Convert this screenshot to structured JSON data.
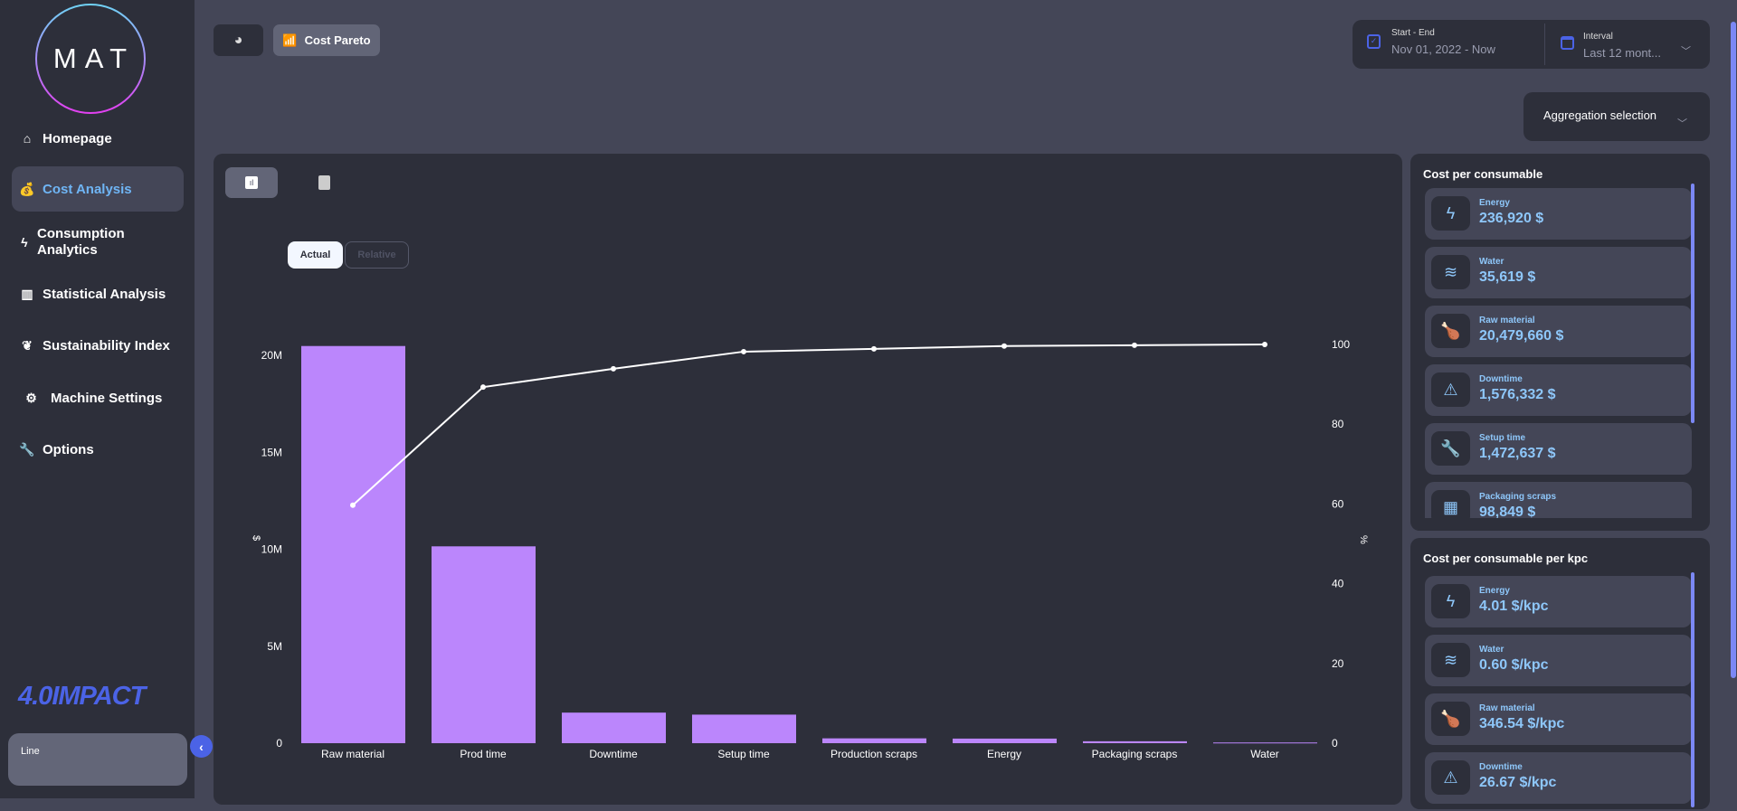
{
  "sidebar": {
    "logo_text": "MAT",
    "items": [
      {
        "label": "Homepage",
        "icon": "home-icon"
      },
      {
        "label": "Cost Analysis",
        "icon": "money-bag-icon",
        "active": true
      },
      {
        "label": "Consumption Analytics",
        "icon": "lightning-icon"
      },
      {
        "label": "Statistical Analysis",
        "icon": "chart-icon"
      },
      {
        "label": "Sustainability Index",
        "icon": "leaf-icon"
      },
      {
        "label": "Machine Settings",
        "icon": "gear-icon"
      },
      {
        "label": "Options",
        "icon": "wrench-icon"
      }
    ],
    "brand": "4.0IMPACT",
    "line_label": "Line"
  },
  "header": {
    "tabs": [
      {
        "label": "",
        "icon": "pie-chart-icon"
      },
      {
        "label": "Cost Pareto",
        "icon": "pareto-chart-icon",
        "active": true
      }
    ],
    "date_range": {
      "label": "Start - End",
      "value": "Nov 01, 2022 - Now"
    },
    "interval": {
      "label": "Interval",
      "value": "Last 12 mont..."
    },
    "aggregation": {
      "label": "Aggregation selection"
    }
  },
  "chart_panel": {
    "view_tabs": [
      {
        "icon": "bar-chart-icon",
        "active": true
      },
      {
        "icon": "clipboard-icon"
      }
    ],
    "toggle": {
      "actual": "Actual",
      "relative": "Relative",
      "selected": "Actual"
    }
  },
  "chart_data": {
    "type": "bar",
    "categories": [
      "Raw material",
      "Prod time",
      "Downtime",
      "Setup time",
      "Production scraps",
      "Energy",
      "Packaging scraps",
      "Water"
    ],
    "values": [
      20479660,
      10150000,
      1576332,
      1472637,
      250000,
      236920,
      98849,
      35619
    ],
    "line_values": [
      59.7,
      89.3,
      93.9,
      98.2,
      98.9,
      99.6,
      99.8,
      100
    ],
    "ylabel": "$",
    "y2label": "%",
    "ylim": [
      0,
      20500000
    ],
    "y2lim": [
      0,
      100
    ],
    "yticks": [
      "0",
      "5M",
      "10M",
      "15M",
      "20M"
    ],
    "y2ticks": [
      "0",
      "20",
      "40",
      "60",
      "80",
      "100"
    ],
    "bar_color": "#bb86fc",
    "line_color": "#ffffff",
    "grid": false
  },
  "cost_per_consumable": {
    "title": "Cost per consumable",
    "items": [
      {
        "label": "Energy",
        "value": "236,920 $",
        "icon": "lightning-icon"
      },
      {
        "label": "Water",
        "value": "35,619 $",
        "icon": "water-waves-icon"
      },
      {
        "label": "Raw material",
        "value": "20,479,660 $",
        "icon": "chicken-icon"
      },
      {
        "label": "Downtime",
        "value": "1,576,332 $",
        "icon": "warning-icon"
      },
      {
        "label": "Setup time",
        "value": "1,472,637 $",
        "icon": "wrench-icon"
      },
      {
        "label": "Packaging scraps",
        "value": "98,849 $",
        "icon": "box-icon"
      }
    ]
  },
  "cost_per_kpc": {
    "title": "Cost per consumable per kpc",
    "items": [
      {
        "label": "Energy",
        "value": "4.01 $/kpc",
        "icon": "lightning-icon"
      },
      {
        "label": "Water",
        "value": "0.60 $/kpc",
        "icon": "water-waves-icon"
      },
      {
        "label": "Raw material",
        "value": "346.54 $/kpc",
        "icon": "chicken-icon"
      },
      {
        "label": "Downtime",
        "value": "26.67 $/kpc",
        "icon": "warning-icon"
      }
    ]
  },
  "colors": {
    "accent": "#4b63e6",
    "active_text": "#6fb5f5",
    "card_value": "#8ec7fa",
    "bar": "#bb86fc"
  }
}
